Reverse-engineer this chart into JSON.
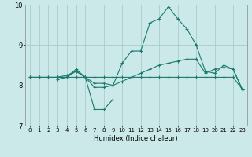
{
  "xlabel": "Humidex (Indice chaleur)",
  "ylabel": "",
  "xlim": [
    -0.5,
    23.5
  ],
  "ylim": [
    7,
    10
  ],
  "yticks": [
    7,
    8,
    9,
    10
  ],
  "xticks": [
    0,
    1,
    2,
    3,
    4,
    5,
    6,
    7,
    8,
    9,
    10,
    11,
    12,
    13,
    14,
    15,
    16,
    17,
    18,
    19,
    20,
    21,
    22,
    23
  ],
  "bg_color": "#cce9e9",
  "grid_color": "#aacccc",
  "line_color": "#1a7a6e",
  "lines": [
    {
      "x": [
        0,
        1,
        2,
        3,
        4,
        5,
        6,
        7,
        8,
        9,
        10,
        11,
        12,
        13,
        14,
        15,
        16,
        17,
        18,
        19,
        20,
        21,
        22,
        23
      ],
      "y": [
        8.2,
        8.2,
        8.2,
        8.2,
        8.2,
        8.2,
        8.2,
        8.2,
        8.2,
        8.2,
        8.2,
        8.2,
        8.2,
        8.2,
        8.2,
        8.2,
        8.2,
        8.2,
        8.2,
        8.2,
        8.2,
        8.2,
        8.2,
        7.9
      ]
    },
    {
      "x": [
        0,
        1,
        2,
        3,
        4,
        5,
        6,
        7,
        8,
        9,
        10,
        11,
        12,
        13,
        14,
        15,
        16,
        17,
        18,
        19,
        20,
        21,
        22,
        23
      ],
      "y": [
        8.2,
        8.2,
        8.2,
        8.2,
        8.25,
        8.35,
        8.2,
        8.05,
        8.05,
        8.0,
        8.1,
        8.2,
        8.3,
        8.4,
        8.5,
        8.55,
        8.6,
        8.65,
        8.65,
        8.3,
        8.4,
        8.45,
        8.4,
        7.9
      ]
    },
    {
      "x": [
        3,
        4,
        5,
        6,
        7,
        8,
        9,
        10,
        11,
        12,
        13,
        14,
        15,
        16,
        17,
        18,
        19,
        20,
        21,
        22,
        23
      ],
      "y": [
        8.2,
        8.2,
        8.35,
        8.2,
        7.95,
        7.95,
        8.0,
        8.55,
        8.85,
        8.85,
        9.55,
        9.65,
        9.95,
        9.65,
        9.4,
        9.0,
        8.35,
        8.3,
        8.5,
        8.4,
        7.9
      ]
    },
    {
      "x": [
        3,
        4,
        5,
        6,
        7,
        8,
        9
      ],
      "y": [
        8.15,
        8.2,
        8.4,
        8.2,
        7.4,
        7.4,
        7.65
      ]
    }
  ]
}
